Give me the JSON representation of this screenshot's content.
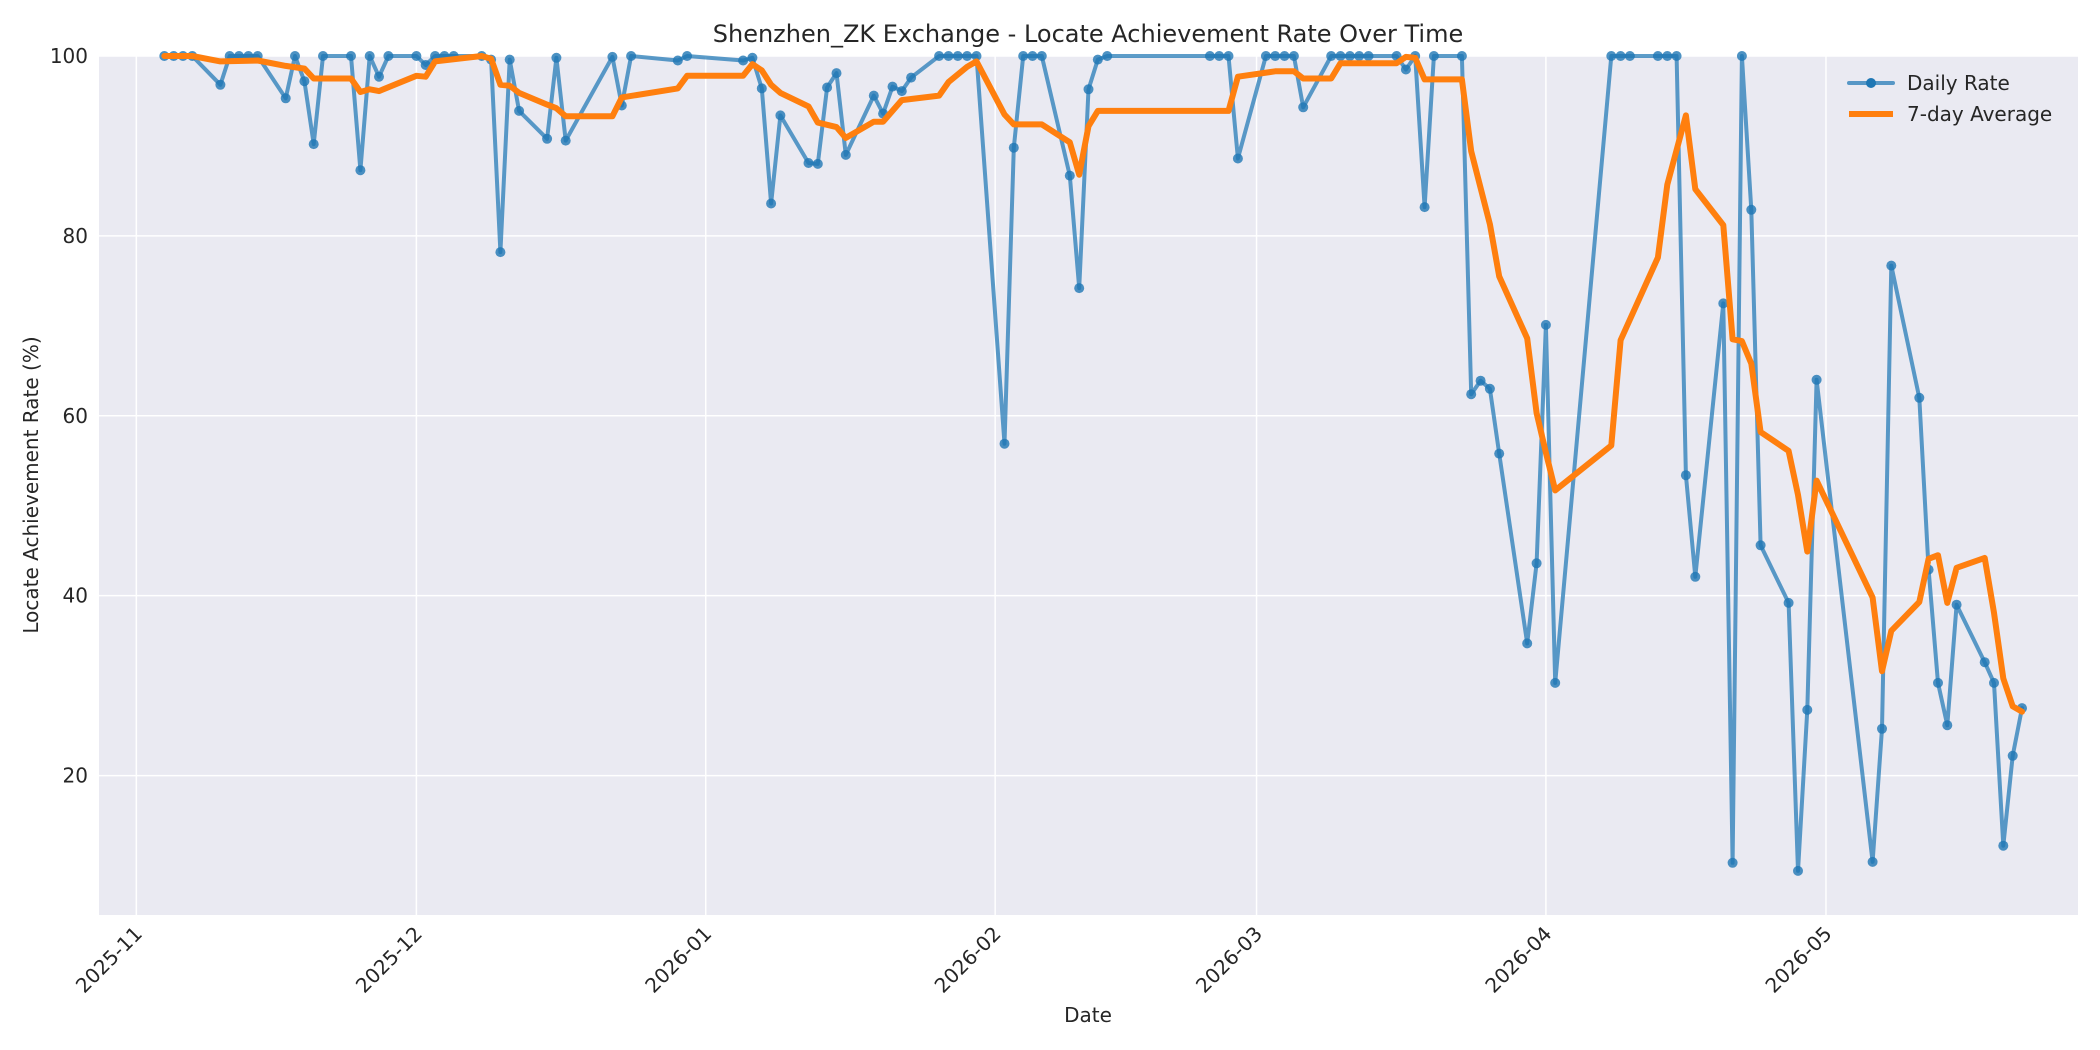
{
  "chart_data": {
    "type": "line",
    "title": "Shenzhen_ZK Exchange - Locate Achievement Rate Over Time",
    "xlabel": "Date",
    "ylabel": "Locate Achievement Rate (%)",
    "x_range": [
      "2025-10-28",
      "2026-05-28"
    ],
    "ylim": [
      4.5,
      100
    ],
    "x_ticks": [
      "2025-11-01",
      "2025-12-01",
      "2026-01-01",
      "2026-02-01",
      "2026-03-01",
      "2026-04-01",
      "2026-05-01"
    ],
    "x_tick_labels": [
      "2025-11",
      "2025-12",
      "2026-01",
      "2026-02",
      "2026-03",
      "2026-04",
      "2026-05"
    ],
    "y_ticks": [
      20,
      40,
      60,
      80,
      100
    ],
    "y_tick_labels": [
      "20",
      "40",
      "60",
      "80",
      "100"
    ],
    "grid": true,
    "legend_position": "top-right",
    "background_color": "#EAEAF2",
    "series": [
      {
        "name": "Daily Rate",
        "color": "#1f77b4",
        "style": "line-markers",
        "points": [
          [
            "2025-11-04",
            100
          ],
          [
            "2025-11-05",
            100
          ],
          [
            "2025-11-06",
            100
          ],
          [
            "2025-11-07",
            100
          ],
          [
            "2025-11-10",
            96.8
          ],
          [
            "2025-11-11",
            100
          ],
          [
            "2025-11-12",
            100
          ],
          [
            "2025-11-13",
            100
          ],
          [
            "2025-11-14",
            100
          ],
          [
            "2025-11-17",
            95.3
          ],
          [
            "2025-11-18",
            100
          ],
          [
            "2025-11-19",
            97.2
          ],
          [
            "2025-11-20",
            90.2
          ],
          [
            "2025-11-21",
            100
          ],
          [
            "2025-11-24",
            100
          ],
          [
            "2025-11-25",
            87.3
          ],
          [
            "2025-11-26",
            100
          ],
          [
            "2025-11-27",
            97.7
          ],
          [
            "2025-11-28",
            100
          ],
          [
            "2025-12-01",
            100
          ],
          [
            "2025-12-02",
            99
          ],
          [
            "2025-12-03",
            100
          ],
          [
            "2025-12-04",
            100
          ],
          [
            "2025-12-05",
            100
          ],
          [
            "2025-12-08",
            100
          ],
          [
            "2025-12-09",
            99.6
          ],
          [
            "2025-12-10",
            78.2
          ],
          [
            "2025-12-11",
            99.6
          ],
          [
            "2025-12-12",
            93.9
          ],
          [
            "2025-12-15",
            90.8
          ],
          [
            "2025-12-16",
            99.8
          ],
          [
            "2025-12-17",
            90.6
          ],
          [
            "2025-12-22",
            99.9
          ],
          [
            "2025-12-23",
            94.5
          ],
          [
            "2025-12-24",
            100
          ],
          [
            "2025-12-29",
            99.5
          ],
          [
            "2025-12-30",
            100
          ],
          [
            "2026-01-05",
            99.5
          ],
          [
            "2026-01-06",
            99.8
          ],
          [
            "2026-01-07",
            96.4
          ],
          [
            "2026-01-08",
            83.6
          ],
          [
            "2026-01-09",
            93.4
          ],
          [
            "2026-01-12",
            88.1
          ],
          [
            "2026-01-13",
            88
          ],
          [
            "2026-01-14",
            96.5
          ],
          [
            "2026-01-15",
            98.1
          ],
          [
            "2026-01-16",
            89
          ],
          [
            "2026-01-19",
            95.6
          ],
          [
            "2026-01-20",
            93.6
          ],
          [
            "2026-01-21",
            96.6
          ],
          [
            "2026-01-22",
            96.1
          ],
          [
            "2026-01-23",
            97.6
          ],
          [
            "2026-01-26",
            100
          ],
          [
            "2026-01-27",
            100
          ],
          [
            "2026-01-28",
            100
          ],
          [
            "2026-01-29",
            100
          ],
          [
            "2026-01-30",
            100
          ],
          [
            "2026-02-02",
            56.9
          ],
          [
            "2026-02-03",
            89.8
          ],
          [
            "2026-02-04",
            100
          ],
          [
            "2026-02-05",
            100
          ],
          [
            "2026-02-06",
            100
          ],
          [
            "2026-02-09",
            86.7
          ],
          [
            "2026-02-10",
            74.2
          ],
          [
            "2026-02-11",
            96.3
          ],
          [
            "2026-02-12",
            99.6
          ],
          [
            "2026-02-13",
            100
          ],
          [
            "2026-02-24",
            100
          ],
          [
            "2026-02-25",
            100
          ],
          [
            "2026-02-26",
            100
          ],
          [
            "2026-02-27",
            88.6
          ],
          [
            "2026-03-02",
            100
          ],
          [
            "2026-03-03",
            100
          ],
          [
            "2026-03-04",
            100
          ],
          [
            "2026-03-05",
            100
          ],
          [
            "2026-03-06",
            94.3
          ],
          [
            "2026-03-09",
            100
          ],
          [
            "2026-03-10",
            100
          ],
          [
            "2026-03-11",
            100
          ],
          [
            "2026-03-12",
            100
          ],
          [
            "2026-03-13",
            100
          ],
          [
            "2026-03-16",
            100
          ],
          [
            "2026-03-17",
            98.5
          ],
          [
            "2026-03-18",
            100
          ],
          [
            "2026-03-19",
            83.2
          ],
          [
            "2026-03-20",
            100
          ],
          [
            "2026-03-23",
            100
          ],
          [
            "2026-03-24",
            62.4
          ],
          [
            "2026-03-25",
            63.9
          ],
          [
            "2026-03-26",
            63
          ],
          [
            "2026-03-27",
            55.8
          ],
          [
            "2026-03-30",
            34.7
          ],
          [
            "2026-03-31",
            43.6
          ],
          [
            "2026-04-01",
            70.1
          ],
          [
            "2026-04-02",
            30.3
          ],
          [
            "2026-04-08",
            100
          ],
          [
            "2026-04-09",
            100
          ],
          [
            "2026-04-10",
            100
          ],
          [
            "2026-04-13",
            100
          ],
          [
            "2026-04-14",
            100
          ],
          [
            "2026-04-15",
            100
          ],
          [
            "2026-04-16",
            53.4
          ],
          [
            "2026-04-17",
            42.1
          ],
          [
            "2026-04-20",
            72.5
          ],
          [
            "2026-04-21",
            10.3
          ],
          [
            "2026-04-22",
            100
          ],
          [
            "2026-04-23",
            82.9
          ],
          [
            "2026-04-24",
            45.6
          ],
          [
            "2026-04-27",
            39.2
          ],
          [
            "2026-04-28",
            9.4
          ],
          [
            "2026-04-29",
            27.3
          ],
          [
            "2026-04-30",
            64
          ],
          [
            "2026-05-06",
            10.4
          ],
          [
            "2026-05-07",
            25.2
          ],
          [
            "2026-05-08",
            76.7
          ],
          [
            "2026-05-11",
            62
          ],
          [
            "2026-05-12",
            42.9
          ],
          [
            "2026-05-13",
            30.3
          ],
          [
            "2026-05-14",
            25.6
          ],
          [
            "2026-05-15",
            39
          ],
          [
            "2026-05-18",
            32.6
          ],
          [
            "2026-05-19",
            30.3
          ],
          [
            "2026-05-20",
            12.2
          ],
          [
            "2026-05-21",
            22.2
          ],
          [
            "2026-05-22",
            27.5
          ]
        ]
      },
      {
        "name": "7-day Average",
        "color": "#ff7f0e",
        "style": "line",
        "points": [
          [
            "2025-11-04",
            100
          ],
          [
            "2025-11-07",
            100
          ],
          [
            "2025-11-10",
            99.4
          ],
          [
            "2025-11-14",
            99.5
          ],
          [
            "2025-11-17",
            98.9
          ],
          [
            "2025-11-19",
            98.6
          ],
          [
            "2025-11-20",
            97.5
          ],
          [
            "2025-11-24",
            97.5
          ],
          [
            "2025-11-25",
            96
          ],
          [
            "2025-11-26",
            96.3
          ],
          [
            "2025-11-27",
            96.1
          ],
          [
            "2025-12-01",
            97.8
          ],
          [
            "2025-12-02",
            97.7
          ],
          [
            "2025-12-03",
            99.4
          ],
          [
            "2025-12-08",
            100
          ],
          [
            "2025-12-09",
            99.7
          ],
          [
            "2025-12-10",
            96.8
          ],
          [
            "2025-12-11",
            96.7
          ],
          [
            "2025-12-12",
            95.9
          ],
          [
            "2025-12-15",
            94.6
          ],
          [
            "2025-12-16",
            94.2
          ],
          [
            "2025-12-17",
            93.3
          ],
          [
            "2025-12-22",
            93.3
          ],
          [
            "2025-12-23",
            95.4
          ],
          [
            "2025-12-29",
            96.4
          ],
          [
            "2025-12-30",
            97.8
          ],
          [
            "2026-01-05",
            97.8
          ],
          [
            "2026-01-06",
            99.1
          ],
          [
            "2026-01-07",
            98.4
          ],
          [
            "2026-01-08",
            96.8
          ],
          [
            "2026-01-09",
            95.9
          ],
          [
            "2026-01-12",
            94.4
          ],
          [
            "2026-01-13",
            92.6
          ],
          [
            "2026-01-15",
            92.1
          ],
          [
            "2026-01-16",
            90.9
          ],
          [
            "2026-01-19",
            92.7
          ],
          [
            "2026-01-20",
            92.7
          ],
          [
            "2026-01-22",
            95.1
          ],
          [
            "2026-01-26",
            95.6
          ],
          [
            "2026-01-27",
            97.1
          ],
          [
            "2026-01-29",
            98.8
          ],
          [
            "2026-01-30",
            99.4
          ],
          [
            "2026-02-02",
            93.5
          ],
          [
            "2026-02-03",
            92.4
          ],
          [
            "2026-02-06",
            92.4
          ],
          [
            "2026-02-09",
            90.4
          ],
          [
            "2026-02-10",
            86.8
          ],
          [
            "2026-02-11",
            92.2
          ],
          [
            "2026-02-12",
            93.9
          ],
          [
            "2026-02-26",
            93.9
          ],
          [
            "2026-02-27",
            97.7
          ],
          [
            "2026-03-03",
            98.3
          ],
          [
            "2026-03-05",
            98.3
          ],
          [
            "2026-03-06",
            97.5
          ],
          [
            "2026-03-09",
            97.5
          ],
          [
            "2026-03-10",
            99.2
          ],
          [
            "2026-03-16",
            99.2
          ],
          [
            "2026-03-17",
            99.9
          ],
          [
            "2026-03-18",
            99.8
          ],
          [
            "2026-03-19",
            97.4
          ],
          [
            "2026-03-23",
            97.4
          ],
          [
            "2026-03-24",
            89.4
          ],
          [
            "2026-03-26",
            81.3
          ],
          [
            "2026-03-27",
            75.5
          ],
          [
            "2026-03-30",
            68.6
          ],
          [
            "2026-03-31",
            60.3
          ],
          [
            "2026-04-01",
            55.9
          ],
          [
            "2026-04-02",
            51.7
          ],
          [
            "2026-04-08",
            56.7
          ],
          [
            "2026-04-09",
            68.4
          ],
          [
            "2026-04-13",
            77.6
          ],
          [
            "2026-04-14",
            85.7
          ],
          [
            "2026-04-16",
            93.4
          ],
          [
            "2026-04-17",
            85.2
          ],
          [
            "2026-04-20",
            81.2
          ],
          [
            "2026-04-21",
            68.5
          ],
          [
            "2026-04-22",
            68.3
          ],
          [
            "2026-04-23",
            65.8
          ],
          [
            "2026-04-24",
            58.2
          ],
          [
            "2026-04-27",
            56.1
          ],
          [
            "2026-04-28",
            51.2
          ],
          [
            "2026-04-29",
            44.9
          ],
          [
            "2026-04-30",
            52.8
          ],
          [
            "2026-05-06",
            39.8
          ],
          [
            "2026-05-07",
            31.6
          ],
          [
            "2026-05-08",
            36.1
          ],
          [
            "2026-05-11",
            39.3
          ],
          [
            "2026-05-12",
            44.1
          ],
          [
            "2026-05-13",
            44.5
          ],
          [
            "2026-05-14",
            39.2
          ],
          [
            "2026-05-15",
            43.1
          ],
          [
            "2026-05-18",
            44.2
          ],
          [
            "2026-05-19",
            38.1
          ],
          [
            "2026-05-20",
            30.8
          ],
          [
            "2026-05-21",
            27.7
          ],
          [
            "2026-05-22",
            27.1
          ]
        ]
      }
    ]
  }
}
